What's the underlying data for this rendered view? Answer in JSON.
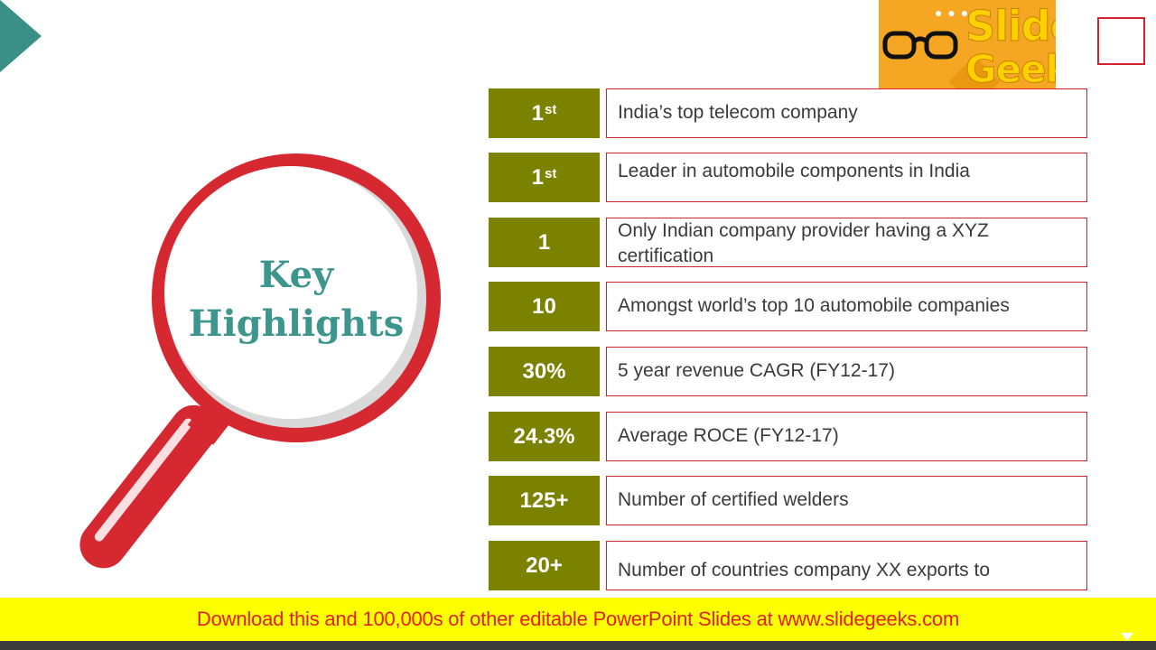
{
  "slide": {
    "title_line1": "Key",
    "title_line2": "Highlights"
  },
  "logo": {
    "word1": "Slide",
    "word2": "Geeks",
    "icon": "glasses-icon"
  },
  "highlights": [
    {
      "value": "1",
      "suffix": "st",
      "text": "India’s top telecom company"
    },
    {
      "value": "1",
      "suffix": "st",
      "text": "Leader in automobile components in India"
    },
    {
      "value": "1",
      "suffix": "",
      "text": "Only Indian company provider having a XYZ certification"
    },
    {
      "value": "10",
      "suffix": "",
      "text": "Amongst world’s top 10 automobile companies"
    },
    {
      "value": "30%",
      "suffix": "",
      "text": "5 year revenue CAGR (FY12-17)"
    },
    {
      "value": "24.3%",
      "suffix": "",
      "text": "Average ROCE (FY12-17)"
    },
    {
      "value": "125+",
      "suffix": "",
      "text": "Number of certified welders"
    },
    {
      "value": "20+",
      "suffix": "",
      "text": "Number of countries company XX exports to"
    }
  ],
  "banner": {
    "text": "Download this and 100,000s of other editable PowerPoint Slides at www.slidegeeks.com"
  },
  "colors": {
    "badge": "#7a8200",
    "accent_red": "#d0232e",
    "teal": "#3d968d",
    "banner_bg": "#ffff00",
    "banner_text": "#e0201b"
  }
}
